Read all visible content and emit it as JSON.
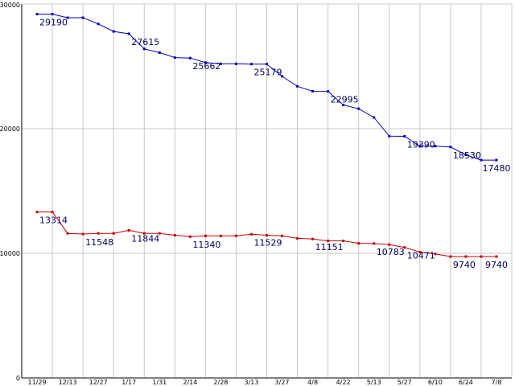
{
  "chart_data": {
    "type": "line",
    "title": "",
    "xlabel": "",
    "ylabel": "",
    "grid": true,
    "ylim": [
      0,
      30000
    ],
    "y_ticks": [
      0,
      10000,
      20000,
      30000
    ],
    "x_tick_labels": [
      "11/29",
      "12/13",
      "12/27",
      "1/17",
      "1/31",
      "2/14",
      "2/28",
      "3/13",
      "3/27",
      "4/8",
      "4/22",
      "5/13",
      "5/27",
      "6/10",
      "6/24",
      "7/8"
    ],
    "colors": {
      "series1": "#0000cc",
      "series2": "#cc0000",
      "grid": "#c8c8c8"
    },
    "series": [
      {
        "points": [
          [
            0,
            29190
          ],
          [
            0.5,
            29190
          ],
          [
            1,
            28900
          ],
          [
            1.5,
            28900
          ],
          [
            2,
            28400
          ],
          [
            2.5,
            27800
          ],
          [
            3,
            27615
          ],
          [
            3.5,
            26400
          ],
          [
            4,
            26100
          ],
          [
            4.5,
            25700
          ],
          [
            5,
            25662
          ],
          [
            5.5,
            25300
          ],
          [
            6,
            25200
          ],
          [
            6.5,
            25200
          ],
          [
            7,
            25179
          ],
          [
            7.5,
            25179
          ],
          [
            8,
            24200
          ],
          [
            8.5,
            23400
          ],
          [
            9,
            23000
          ],
          [
            9.5,
            22995
          ],
          [
            10,
            21900
          ],
          [
            10.5,
            21600
          ],
          [
            11,
            20900
          ],
          [
            11.5,
            19400
          ],
          [
            12,
            19390
          ],
          [
            12.5,
            18600
          ],
          [
            13,
            18600
          ],
          [
            13.5,
            18530
          ],
          [
            14,
            17900
          ],
          [
            14.5,
            17480
          ],
          [
            15,
            17480
          ]
        ],
        "labels": [
          {
            "i": 0,
            "text": "29190"
          },
          {
            "i": 6,
            "text": "27615"
          },
          {
            "i": 10,
            "text": "25662"
          },
          {
            "i": 14,
            "text": "25179"
          },
          {
            "i": 19,
            "text": "22995"
          },
          {
            "i": 24,
            "text": "19390"
          },
          {
            "i": 27,
            "text": "18530"
          },
          {
            "i": 30,
            "text": "17480"
          }
        ]
      },
      {
        "points": [
          [
            0,
            13314
          ],
          [
            0.5,
            13314
          ],
          [
            1,
            11600
          ],
          [
            1.5,
            11548
          ],
          [
            2,
            11600
          ],
          [
            2.5,
            11600
          ],
          [
            3,
            11844
          ],
          [
            3.5,
            11600
          ],
          [
            4,
            11600
          ],
          [
            4.5,
            11450
          ],
          [
            5,
            11340
          ],
          [
            5.5,
            11400
          ],
          [
            6,
            11400
          ],
          [
            6.5,
            11400
          ],
          [
            7,
            11529
          ],
          [
            7.5,
            11450
          ],
          [
            8,
            11400
          ],
          [
            8.5,
            11200
          ],
          [
            9,
            11151
          ],
          [
            9.5,
            11000
          ],
          [
            10,
            11000
          ],
          [
            10.5,
            10800
          ],
          [
            11,
            10783
          ],
          [
            11.5,
            10700
          ],
          [
            12,
            10471
          ],
          [
            12.5,
            10100
          ],
          [
            13,
            9950
          ],
          [
            13.5,
            9740
          ],
          [
            14,
            9740
          ],
          [
            14.5,
            9740
          ],
          [
            15,
            9740
          ]
        ],
        "labels": [
          {
            "i": 0,
            "text": "13314"
          },
          {
            "i": 3,
            "text": "11548"
          },
          {
            "i": 6,
            "text": "11844"
          },
          {
            "i": 10,
            "text": "11340"
          },
          {
            "i": 14,
            "text": "11529"
          },
          {
            "i": 18,
            "text": "11151"
          },
          {
            "i": 22,
            "text": "10783"
          },
          {
            "i": 24,
            "text": "10471"
          },
          {
            "i": 27,
            "text": "9740"
          },
          {
            "i": 30,
            "text": "9740"
          }
        ]
      }
    ]
  }
}
